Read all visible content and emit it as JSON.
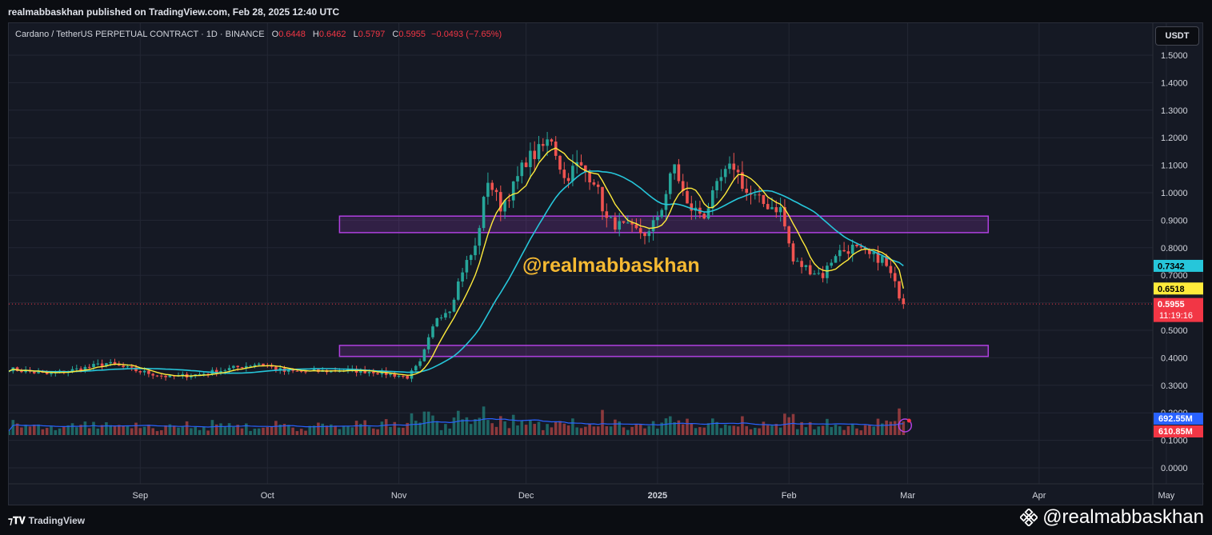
{
  "header": {
    "published": "realmabbaskhan published on TradingView.com, Feb 28, 2025 12:40 UTC"
  },
  "legend": {
    "symbol": "Cardano / TetherUS PERPETUAL CONTRACT · 1D · BINANCE",
    "o_label": "O",
    "o": "0.6448",
    "h_label": "H",
    "h": "0.6462",
    "l_label": "L",
    "l": "0.5797",
    "c_label": "C",
    "c": "0.5955",
    "change": "−0.0493 (−7.65%)"
  },
  "currency_button": "USDT",
  "watermark": "@realmabbaskhan",
  "footer": {
    "brand": "TradingView",
    "handle": "@realmabbaskhan"
  },
  "colors": {
    "up": "#26a69a",
    "down": "#ef5350",
    "ma_fast": "#ffeb3b",
    "ma_slow": "#26c6da",
    "zone": "#b040e0",
    "vol_ma": "#2962ff",
    "watermark": "#f5b932"
  },
  "chart_data": {
    "type": "candlestick",
    "y_axis_labels": [
      "1.5000",
      "1.4000",
      "1.3000",
      "1.2000",
      "1.1000",
      "1.0000",
      "0.9000",
      "0.8000",
      "0.7000",
      "0.6000",
      "0.5000",
      "0.4000",
      "0.3000",
      "0.2000",
      "0.1000",
      "0.0000"
    ],
    "x_axis_labels": [
      "Sep",
      "Oct",
      "Nov",
      "Dec",
      "2025",
      "Feb",
      "Mar",
      "Apr",
      "May"
    ],
    "ylim": [
      0,
      1.5
    ],
    "price_tags": [
      {
        "label": "0.7342",
        "value": 0.7342,
        "color": "#26c6da",
        "text_color": "#000000"
      },
      {
        "label": "0.6518",
        "value": 0.6518,
        "color": "#ffeb3b",
        "text_color": "#000000"
      },
      {
        "label": "0.5955",
        "value": 0.5955,
        "color": "#f23645",
        "text_color": "#ffffff"
      }
    ],
    "countdown": "11:19:16",
    "volume_tags": [
      {
        "label": "692.55M",
        "color": "#2962ff"
      },
      {
        "label": "610.85M",
        "color": "#f23645"
      }
    ],
    "zones": [
      {
        "from_date": "2024-10-18",
        "to_date": "2025-03-20",
        "low": 0.855,
        "high": 0.915
      },
      {
        "from_date": "2024-10-18",
        "to_date": "2025-03-20",
        "low": 0.405,
        "high": 0.445
      }
    ],
    "price_path": [
      [
        "2024-08-01",
        0.36
      ],
      [
        "2024-08-10",
        0.34
      ],
      [
        "2024-08-18",
        0.36
      ],
      [
        "2024-08-24",
        0.38
      ],
      [
        "2024-09-01",
        0.35
      ],
      [
        "2024-09-08",
        0.33
      ],
      [
        "2024-09-15",
        0.34
      ],
      [
        "2024-09-22",
        0.36
      ],
      [
        "2024-09-29",
        0.38
      ],
      [
        "2024-10-05",
        0.35
      ],
      [
        "2024-10-12",
        0.35
      ],
      [
        "2024-10-19",
        0.355
      ],
      [
        "2024-10-26",
        0.35
      ],
      [
        "2024-11-03",
        0.33
      ],
      [
        "2024-11-06",
        0.38
      ],
      [
        "2024-11-10",
        0.55
      ],
      [
        "2024-11-13",
        0.58
      ],
      [
        "2024-11-16",
        0.72
      ],
      [
        "2024-11-19",
        0.8
      ],
      [
        "2024-11-22",
        1.05
      ],
      [
        "2024-11-25",
        0.95
      ],
      [
        "2024-11-28",
        1.02
      ],
      [
        "2024-12-01",
        1.12
      ],
      [
        "2024-12-04",
        1.15
      ],
      [
        "2024-12-07",
        1.2
      ],
      [
        "2024-12-10",
        1.05
      ],
      [
        "2024-12-13",
        1.1
      ],
      [
        "2024-12-17",
        1.05
      ],
      [
        "2024-12-20",
        0.9
      ],
      [
        "2024-12-23",
        0.88
      ],
      [
        "2024-12-27",
        0.86
      ],
      [
        "2024-12-30",
        0.85
      ],
      [
        "2025-01-02",
        0.95
      ],
      [
        "2025-01-05",
        1.1
      ],
      [
        "2025-01-08",
        0.95
      ],
      [
        "2025-01-12",
        0.92
      ],
      [
        "2025-01-16",
        1.05
      ],
      [
        "2025-01-19",
        1.1
      ],
      [
        "2025-01-22",
        1.0
      ],
      [
        "2025-01-26",
        0.96
      ],
      [
        "2025-01-30",
        0.94
      ],
      [
        "2025-02-02",
        0.75
      ],
      [
        "2025-02-06",
        0.72
      ],
      [
        "2025-02-09",
        0.7
      ],
      [
        "2025-02-12",
        0.78
      ],
      [
        "2025-02-16",
        0.8
      ],
      [
        "2025-02-20",
        0.77
      ],
      [
        "2025-02-23",
        0.76
      ],
      [
        "2025-02-25",
        0.7
      ],
      [
        "2025-02-28",
        0.5955
      ]
    ],
    "ma_fast_end": 0.6518,
    "ma_slow_end": 0.7342
  }
}
